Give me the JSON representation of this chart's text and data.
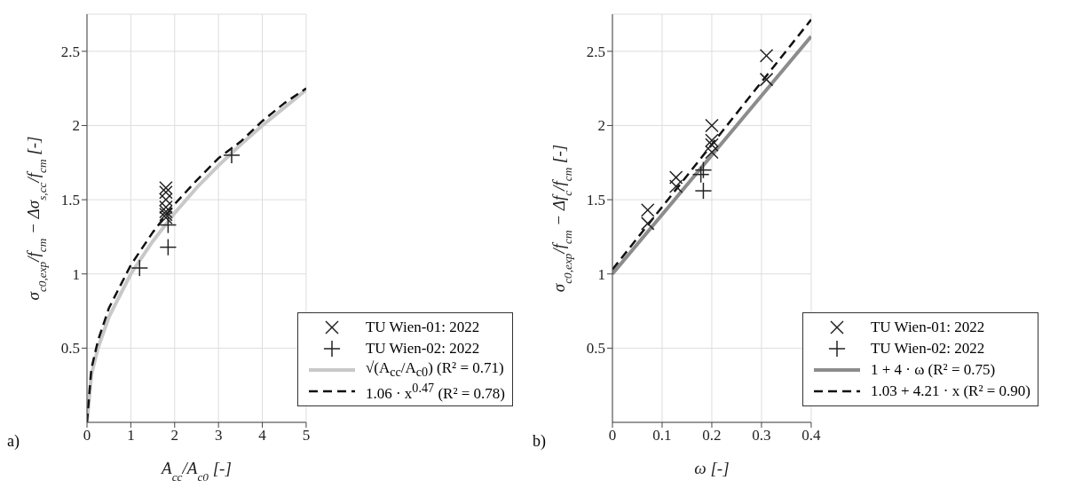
{
  "chart_data": [
    {
      "type": "scatter",
      "xlabel": "A$_{cc}$/A$_{c0}$ [-]",
      "ylabel": "σ$_{c0,exp}$/f$_{cm}$ − Δσ$_{s,cc}$/f$_{cm}$ [-]",
      "annotations": [
        "a)"
      ],
      "xlim": [
        0,
        5
      ],
      "xticks": [
        0,
        1,
        2,
        3,
        4,
        5
      ],
      "ylim": [
        0,
        2.75
      ],
      "yticks": [
        0.5,
        1,
        1.5,
        2,
        2.5
      ],
      "grid": true,
      "legend": "bottom right",
      "series": [
        {
          "name": "TU Wien-01: 2022",
          "color": "#222222",
          "marker": "cross",
          "x": [
            1.8,
            1.8,
            1.8,
            1.8,
            1.8,
            1.8,
            1.8
          ],
          "values": [
            1.58,
            1.55,
            1.5,
            1.45,
            1.42,
            1.4,
            1.38
          ]
        },
        {
          "name": "TU Wien-02: 2022",
          "color": "#222222",
          "marker": "plus",
          "x": [
            1.2,
            1.85,
            1.85,
            3.3
          ],
          "values": [
            1.04,
            1.33,
            1.18,
            1.8
          ]
        },
        {
          "name": "√(A$_{cc}$/A$_{c0}$) (R² = 0.71)",
          "type": "line",
          "color": "#c8c8c8",
          "line_style": "solid",
          "marker": "none",
          "x": [
            0,
            0.1,
            0.25,
            0.5,
            1,
            1.5,
            2,
            2.5,
            3,
            3.5,
            4,
            4.5,
            5
          ],
          "values": [
            0,
            0.32,
            0.5,
            0.71,
            1,
            1.22,
            1.41,
            1.58,
            1.73,
            1.87,
            2,
            2.12,
            2.24
          ]
        },
        {
          "name": "1.06 · x$^{0.47}$ (R² = 0.78)",
          "type": "line",
          "color": "#111111",
          "line_style": "dashed",
          "marker": "none",
          "x": [
            0,
            0.1,
            0.25,
            0.5,
            1,
            1.5,
            2,
            2.5,
            3,
            3.5,
            4,
            4.5,
            5
          ],
          "values": [
            0,
            0.36,
            0.55,
            0.77,
            1.06,
            1.28,
            1.47,
            1.63,
            1.78,
            1.89,
            2.03,
            2.15,
            2.25
          ]
        }
      ]
    },
    {
      "type": "scatter",
      "xlabel": "ω [-]",
      "ylabel": "σ$_{c0,exp}$/f$_{cm}$ − Δf$_{c}$/f$_{cm}$ [-]",
      "annotations": [
        "b)"
      ],
      "xlim": [
        0,
        0.4
      ],
      "xticks": [
        0,
        0.1,
        0.2,
        0.3,
        0.4
      ],
      "ylim": [
        0,
        2.75
      ],
      "yticks": [
        0.5,
        1,
        1.5,
        2,
        2.5
      ],
      "grid": true,
      "legend": "bottom right",
      "series": [
        {
          "name": "TU Wien-01: 2022",
          "color": "#222222",
          "marker": "cross",
          "x": [
            0.071,
            0.071,
            0.128,
            0.128,
            0.2,
            0.2,
            0.2,
            0.2,
            0.31,
            0.31
          ],
          "values": [
            1.43,
            1.34,
            1.65,
            1.59,
            2.0,
            1.9,
            1.87,
            1.82,
            2.47,
            2.31
          ]
        },
        {
          "name": "TU Wien-02: 2022",
          "color": "#222222",
          "marker": "plus",
          "x": [
            0.178,
            0.183,
            0.183
          ],
          "values": [
            1.67,
            1.7,
            1.56
          ]
        },
        {
          "name": "1 + 4 · ω (R² = 0.75)",
          "type": "line",
          "color": "#8c8c8c",
          "line_style": "solid",
          "marker": "none",
          "x": [
            0,
            0.4
          ],
          "values": [
            1,
            2.6
          ]
        },
        {
          "name": "1.03 + 4.21 · x (R² = 0.90)",
          "type": "line",
          "color": "#111111",
          "line_style": "dashed",
          "marker": "none",
          "x": [
            0,
            0.4
          ],
          "values": [
            1.03,
            2.714
          ]
        }
      ]
    }
  ]
}
